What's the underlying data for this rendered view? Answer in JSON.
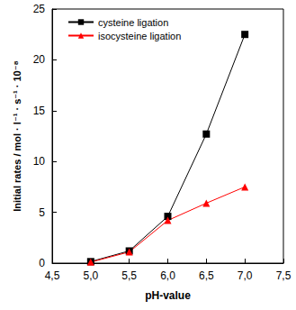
{
  "chart_data": {
    "type": "line",
    "x_label": "pH-value",
    "y_label": "Initial rates / mol · l⁻¹ · s⁻¹ · 10⁻⁸",
    "xlim": [
      4.5,
      7.5
    ],
    "xticks": [
      {
        "value": 4.5,
        "label": "4,5"
      },
      {
        "value": 5.0,
        "label": "5,0"
      },
      {
        "value": 5.5,
        "label": "5,5"
      },
      {
        "value": 6.0,
        "label": "6,0"
      },
      {
        "value": 6.5,
        "label": "6,5"
      },
      {
        "value": 7.0,
        "label": "7,0"
      },
      {
        "value": 7.5,
        "label": "7,5"
      }
    ],
    "ylim": [
      0,
      25
    ],
    "yticks": [
      0,
      5,
      10,
      15,
      20,
      25
    ],
    "x": [
      5.0,
      5.5,
      6.0,
      6.5,
      7.0
    ],
    "series": [
      {
        "name": "cysteine ligation",
        "color": "#000000",
        "marker": "square",
        "values": [
          0.15,
          1.2,
          4.6,
          12.7,
          22.5
        ]
      },
      {
        "name": "isocysteine ligation",
        "color": "#ff0000",
        "marker": "triangle",
        "values": [
          0.1,
          1.1,
          4.2,
          5.9,
          7.5
        ]
      }
    ],
    "legend": "upper left",
    "grid": false
  }
}
